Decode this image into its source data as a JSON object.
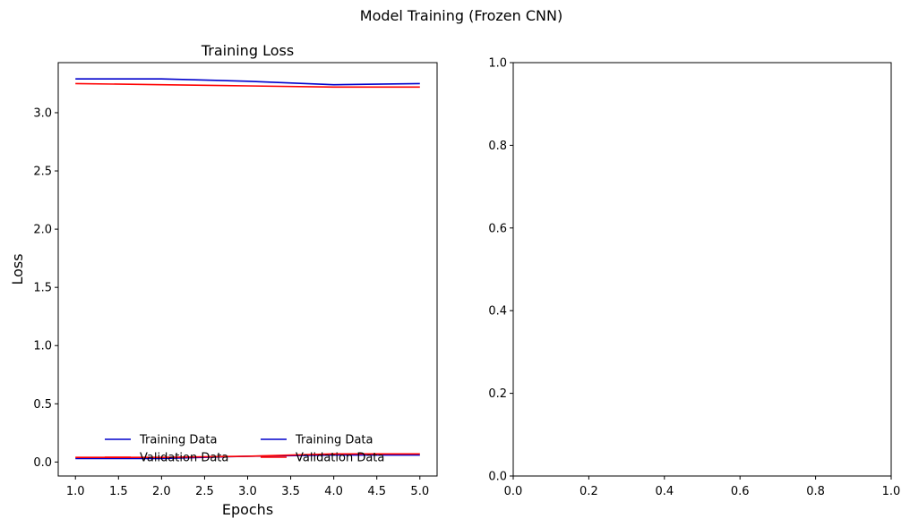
{
  "figure": {
    "suptitle": "Model Training (Frozen CNN)"
  },
  "chart_data": [
    {
      "type": "line",
      "title": "Training Loss",
      "xlabel": "Epochs",
      "ylabel": "Loss",
      "xlim": [
        0.8,
        5.2
      ],
      "ylim": [
        -0.12,
        3.43
      ],
      "xticks": [
        1.0,
        1.5,
        2.0,
        2.5,
        3.0,
        3.5,
        4.0,
        4.5,
        5.0
      ],
      "xtick_labels": [
        "1.0",
        "1.5",
        "2.0",
        "2.5",
        "3.0",
        "3.5",
        "4.0",
        "4.5",
        "5.0"
      ],
      "yticks": [
        0.0,
        0.5,
        1.0,
        1.5,
        2.0,
        2.5,
        3.0
      ],
      "ytick_labels": [
        "0.0",
        "0.5",
        "1.0",
        "1.5",
        "2.0",
        "2.5",
        "3.0"
      ],
      "x": [
        1,
        2,
        3,
        4,
        5
      ],
      "series": [
        {
          "name": "Training Data",
          "color": "#0000cc",
          "values": [
            3.29,
            3.29,
            3.27,
            3.24,
            3.25
          ]
        },
        {
          "name": "Validation Data",
          "color": "#ff0000",
          "values": [
            3.25,
            3.24,
            3.23,
            3.22,
            3.22
          ]
        },
        {
          "name": "Training Data",
          "color": "#0000cc",
          "values": [
            0.03,
            0.03,
            0.05,
            0.06,
            0.06
          ]
        },
        {
          "name": "Validation Data",
          "color": "#ff0000",
          "values": [
            0.04,
            0.04,
            0.05,
            0.07,
            0.07
          ]
        }
      ],
      "legend": {
        "placement": "lower center",
        "columns": 2,
        "frame": false,
        "entries": [
          {
            "label": "Training Data",
            "color": "#0000cc"
          },
          {
            "label": "Validation Data",
            "color": "#ff0000"
          },
          {
            "label": "Training Data",
            "color": "#0000cc"
          },
          {
            "label": "Validation Data",
            "color": "#ff0000"
          }
        ]
      },
      "grid": false
    },
    {
      "type": "line",
      "title": "",
      "xlabel": "",
      "ylabel": "",
      "xlim": [
        0.0,
        1.0
      ],
      "ylim": [
        0.0,
        1.0
      ],
      "xticks": [
        0.0,
        0.2,
        0.4,
        0.6,
        0.8,
        1.0
      ],
      "xtick_labels": [
        "0.0",
        "0.2",
        "0.4",
        "0.6",
        "0.8",
        "1.0"
      ],
      "yticks": [
        0.0,
        0.2,
        0.4,
        0.6,
        0.8,
        1.0
      ],
      "ytick_labels": [
        "0.0",
        "0.2",
        "0.4",
        "0.6",
        "0.8",
        "1.0"
      ],
      "series": [],
      "grid": false
    }
  ]
}
